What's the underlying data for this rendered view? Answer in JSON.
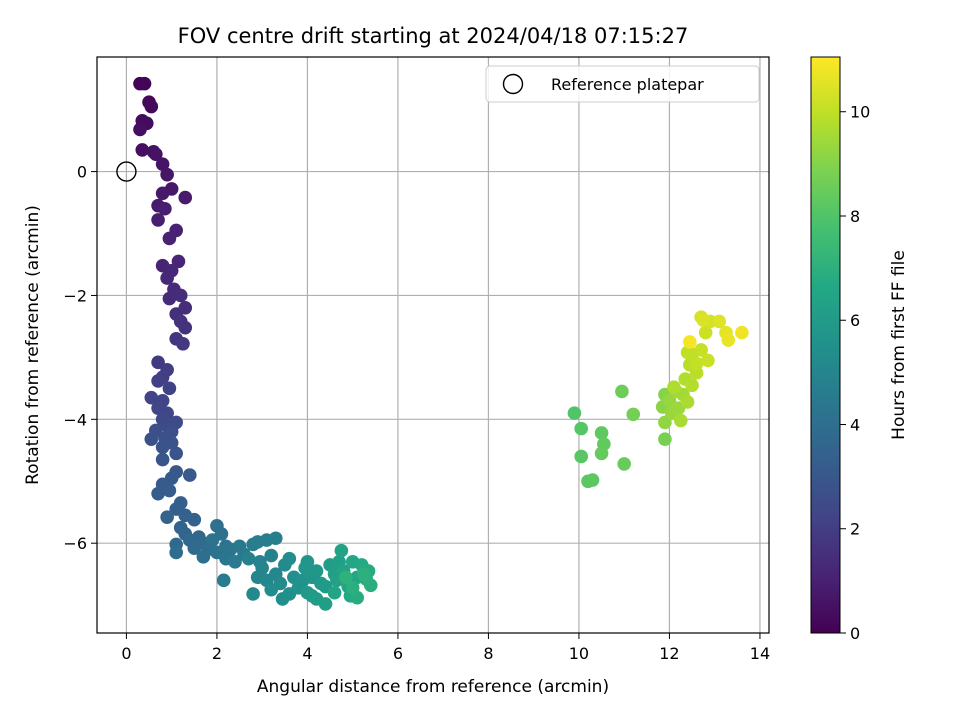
{
  "chart_data": {
    "type": "scatter",
    "title": "FOV centre drift starting at 2024/04/18 07:15:27",
    "xlabel": "Angular distance from reference (arcmin)",
    "ylabel": "Rotation from reference (arcmin)",
    "xlim": [
      -0.65,
      14.2
    ],
    "ylim": [
      -7.45,
      1.85
    ],
    "xticks": [
      0,
      2,
      4,
      6,
      8,
      10,
      12,
      14
    ],
    "yticks": [
      0,
      -2,
      -4,
      -6
    ],
    "grid": true,
    "legend": {
      "position": "top-right",
      "entries": [
        "Reference platepar"
      ]
    },
    "reference_point": {
      "x": 0,
      "y": 0,
      "label": "Reference platepar"
    },
    "colorbar": {
      "label": "Hours from first FF file",
      "range": [
        0,
        11.05
      ],
      "ticks": [
        0,
        2,
        4,
        6,
        8,
        10
      ],
      "colormap": "viridis"
    },
    "points": [
      [
        0.3,
        1.42,
        0.05
      ],
      [
        0.4,
        1.42,
        0.1
      ],
      [
        0.5,
        1.12,
        0.2
      ],
      [
        0.55,
        1.05,
        0.25
      ],
      [
        0.35,
        0.82,
        0.3
      ],
      [
        0.45,
        0.78,
        0.35
      ],
      [
        0.3,
        0.68,
        0.4
      ],
      [
        0.35,
        0.35,
        0.45
      ],
      [
        0.6,
        0.32,
        0.5
      ],
      [
        0.65,
        0.28,
        0.55
      ],
      [
        0.8,
        0.12,
        0.6
      ],
      [
        0.9,
        -0.05,
        0.65
      ],
      [
        1.0,
        -0.28,
        0.7
      ],
      [
        0.8,
        -0.35,
        0.75
      ],
      [
        1.3,
        -0.42,
        0.8
      ],
      [
        0.7,
        -0.55,
        0.85
      ],
      [
        0.85,
        -0.6,
        0.9
      ],
      [
        0.7,
        -0.78,
        0.95
      ],
      [
        1.1,
        -0.95,
        1.0
      ],
      [
        0.95,
        -1.08,
        1.05
      ],
      [
        0.8,
        -1.52,
        1.1
      ],
      [
        1.15,
        -1.45,
        1.15
      ],
      [
        1.0,
        -1.6,
        1.2
      ],
      [
        0.9,
        -1.72,
        1.25
      ],
      [
        1.05,
        -1.9,
        1.3
      ],
      [
        0.95,
        -2.05,
        1.35
      ],
      [
        1.2,
        -2.0,
        1.4
      ],
      [
        1.3,
        -2.2,
        1.45
      ],
      [
        1.1,
        -2.3,
        1.5
      ],
      [
        1.2,
        -2.42,
        1.55
      ],
      [
        1.3,
        -2.52,
        1.6
      ],
      [
        1.1,
        -2.7,
        1.7
      ],
      [
        1.25,
        -2.78,
        1.8
      ],
      [
        0.7,
        -3.08,
        1.9
      ],
      [
        0.9,
        -3.2,
        2.0
      ],
      [
        0.8,
        -3.32,
        2.05
      ],
      [
        0.7,
        -3.38,
        2.1
      ],
      [
        0.95,
        -3.5,
        2.15
      ],
      [
        0.55,
        -3.65,
        2.2
      ],
      [
        0.8,
        -3.7,
        2.25
      ],
      [
        0.7,
        -3.82,
        2.3
      ],
      [
        0.9,
        -3.9,
        2.35
      ],
      [
        0.8,
        -4.0,
        2.4
      ],
      [
        1.1,
        -4.05,
        2.5
      ],
      [
        0.9,
        -4.1,
        2.55
      ],
      [
        1.0,
        -4.2,
        2.6
      ],
      [
        0.65,
        -4.18,
        2.65
      ],
      [
        0.85,
        -4.3,
        2.7
      ],
      [
        0.55,
        -4.32,
        2.75
      ],
      [
        1.0,
        -4.38,
        2.8
      ],
      [
        0.8,
        -4.45,
        2.85
      ],
      [
        1.1,
        -4.55,
        2.9
      ],
      [
        0.8,
        -4.65,
        2.95
      ],
      [
        1.1,
        -4.85,
        3.0
      ],
      [
        1.4,
        -4.9,
        3.05
      ],
      [
        1.0,
        -4.95,
        3.1
      ],
      [
        0.8,
        -5.05,
        3.15
      ],
      [
        0.7,
        -5.2,
        3.2
      ],
      [
        0.95,
        -5.15,
        3.25
      ],
      [
        1.2,
        -5.35,
        3.3
      ],
      [
        1.1,
        -5.45,
        3.35
      ],
      [
        1.3,
        -5.55,
        3.4
      ],
      [
        0.9,
        -5.58,
        3.45
      ],
      [
        1.5,
        -5.62,
        3.5
      ],
      [
        1.2,
        -5.75,
        3.55
      ],
      [
        1.3,
        -5.85,
        3.6
      ],
      [
        1.6,
        -5.9,
        3.65
      ],
      [
        1.4,
        -5.95,
        3.7
      ],
      [
        1.1,
        -6.02,
        3.75
      ],
      [
        1.7,
        -6.0,
        3.8
      ],
      [
        1.5,
        -6.08,
        3.85
      ],
      [
        1.1,
        -6.15,
        3.9
      ],
      [
        1.8,
        -6.1,
        3.95
      ],
      [
        1.7,
        -6.22,
        4.0
      ],
      [
        2.0,
        -5.72,
        4.05
      ],
      [
        2.1,
        -5.85,
        4.1
      ],
      [
        1.9,
        -5.95,
        4.15
      ],
      [
        2.2,
        -6.05,
        4.2
      ],
      [
        2.0,
        -6.15,
        4.25
      ],
      [
        2.3,
        -6.1,
        4.3
      ],
      [
        2.2,
        -6.25,
        4.35
      ],
      [
        2.5,
        -6.05,
        4.4
      ],
      [
        2.4,
        -6.3,
        4.45
      ],
      [
        2.6,
        -6.18,
        4.5
      ],
      [
        2.15,
        -6.6,
        4.55
      ],
      [
        2.8,
        -6.02,
        4.6
      ],
      [
        2.9,
        -5.98,
        4.65
      ],
      [
        3.1,
        -5.95,
        4.7
      ],
      [
        3.3,
        -5.92,
        4.75
      ],
      [
        2.7,
        -6.25,
        4.8
      ],
      [
        2.95,
        -6.3,
        4.85
      ],
      [
        3.2,
        -6.2,
        4.9
      ],
      [
        3.0,
        -6.4,
        4.95
      ],
      [
        2.9,
        -6.55,
        5.0
      ],
      [
        3.3,
        -6.5,
        5.05
      ],
      [
        3.1,
        -6.6,
        5.1
      ],
      [
        2.8,
        -6.82,
        5.15
      ],
      [
        3.5,
        -6.35,
        5.2
      ],
      [
        3.4,
        -6.65,
        5.25
      ],
      [
        3.2,
        -6.75,
        5.3
      ],
      [
        3.6,
        -6.25,
        5.35
      ],
      [
        3.45,
        -6.9,
        5.4
      ],
      [
        3.7,
        -6.55,
        5.45
      ],
      [
        3.6,
        -6.82,
        5.5
      ],
      [
        3.9,
        -6.6,
        5.55
      ],
      [
        3.8,
        -6.72,
        5.6
      ],
      [
        4.0,
        -6.3,
        5.65
      ],
      [
        4.1,
        -6.55,
        5.7
      ],
      [
        3.95,
        -6.4,
        5.75
      ],
      [
        4.2,
        -6.45,
        5.8
      ],
      [
        4.0,
        -6.8,
        5.85
      ],
      [
        4.3,
        -6.65,
        5.9
      ],
      [
        4.1,
        -6.85,
        5.95
      ],
      [
        4.4,
        -6.7,
        6.0
      ],
      [
        4.2,
        -6.9,
        6.05
      ],
      [
        4.5,
        -6.35,
        6.1
      ],
      [
        4.4,
        -6.98,
        6.15
      ],
      [
        4.6,
        -6.5,
        6.2
      ],
      [
        4.7,
        -6.3,
        6.25
      ],
      [
        4.65,
        -6.6,
        6.3
      ],
      [
        4.8,
        -6.45,
        6.35
      ],
      [
        4.75,
        -6.12,
        6.4
      ],
      [
        4.9,
        -6.7,
        6.45
      ],
      [
        4.6,
        -6.8,
        6.5
      ],
      [
        5.0,
        -6.3,
        6.55
      ],
      [
        5.1,
        -6.55,
        6.6
      ],
      [
        4.95,
        -6.85,
        6.65
      ],
      [
        5.2,
        -6.35,
        6.7
      ],
      [
        5.35,
        -6.45,
        6.75
      ],
      [
        5.1,
        -6.88,
        6.8
      ],
      [
        5.3,
        -6.58,
        6.85
      ],
      [
        5.4,
        -6.68,
        6.9
      ],
      [
        5.0,
        -6.72,
        6.95
      ],
      [
        5.25,
        -6.5,
        7.0
      ],
      [
        4.85,
        -6.55,
        7.05
      ],
      [
        9.9,
        -3.9,
        8.0
      ],
      [
        10.05,
        -4.15,
        8.1
      ],
      [
        10.05,
        -4.6,
        8.15
      ],
      [
        10.2,
        -5.0,
        8.2
      ],
      [
        10.3,
        -4.98,
        8.25
      ],
      [
        10.5,
        -4.22,
        8.3
      ],
      [
        10.55,
        -4.4,
        8.35
      ],
      [
        10.5,
        -4.55,
        8.4
      ],
      [
        11.0,
        -4.72,
        8.5
      ],
      [
        10.95,
        -3.55,
        8.6
      ],
      [
        11.2,
        -3.92,
        8.7
      ],
      [
        11.9,
        -4.32,
        8.8
      ],
      [
        11.9,
        -3.6,
        9.0
      ],
      [
        11.85,
        -3.8,
        9.1
      ],
      [
        11.9,
        -4.05,
        9.2
      ],
      [
        12.0,
        -3.7,
        9.3
      ],
      [
        12.05,
        -3.9,
        9.35
      ],
      [
        12.2,
        -3.82,
        9.4
      ],
      [
        12.15,
        -3.55,
        9.45
      ],
      [
        12.3,
        -3.6,
        9.5
      ],
      [
        12.25,
        -4.02,
        9.6
      ],
      [
        12.4,
        -3.72,
        9.65
      ],
      [
        12.1,
        -3.48,
        9.7
      ],
      [
        12.35,
        -3.35,
        9.75
      ],
      [
        12.5,
        -3.45,
        9.8
      ],
      [
        12.45,
        -3.12,
        9.85
      ],
      [
        12.6,
        -3.25,
        9.9
      ],
      [
        12.5,
        -2.95,
        9.95
      ],
      [
        12.4,
        -2.92,
        10.0
      ],
      [
        12.6,
        -3.1,
        10.05
      ],
      [
        12.7,
        -2.88,
        10.1
      ],
      [
        12.85,
        -3.05,
        10.15
      ],
      [
        12.8,
        -2.6,
        10.2
      ],
      [
        12.9,
        -2.42,
        10.3
      ],
      [
        12.7,
        -2.35,
        10.4
      ],
      [
        12.75,
        -2.4,
        10.45
      ],
      [
        13.1,
        -2.42,
        10.5
      ],
      [
        13.25,
        -2.6,
        10.6
      ],
      [
        13.3,
        -2.72,
        10.7
      ],
      [
        13.6,
        -2.6,
        10.8
      ],
      [
        12.45,
        -2.75,
        10.9
      ]
    ]
  }
}
